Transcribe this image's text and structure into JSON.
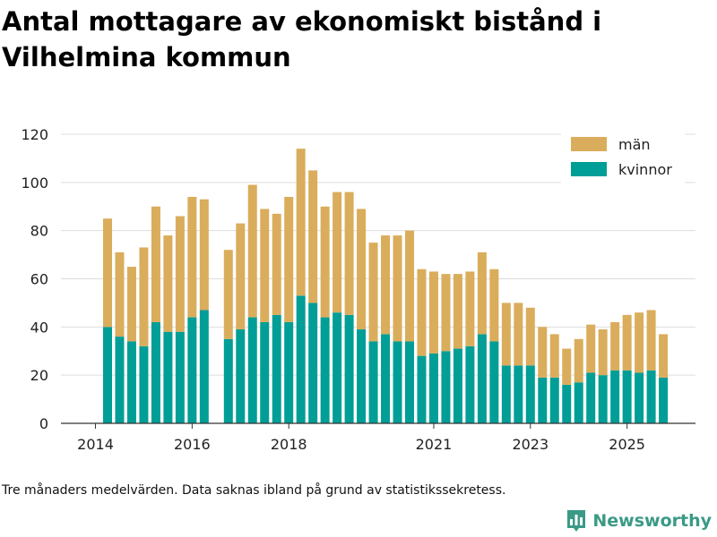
{
  "title": "Antal mottagare av ekonomiskt bistånd i Vilhelmina kommun",
  "footnote": "Tre månaders medelvärden. Data saknas ibland på grund av statistikssekretess.",
  "brand": {
    "name": "Newsworthy",
    "color": "#3a9a86",
    "icon": "bar-chart-logo-icon"
  },
  "colors": {
    "kvinnor": "#009e96",
    "man": "#daad5c",
    "grid": "#dddddd",
    "axis": "#333333"
  },
  "chart_data": {
    "type": "bar",
    "stacked": true,
    "title": "Antal mottagare av ekonomiskt bistånd i Vilhelmina kommun",
    "xlabel": "",
    "ylabel": "",
    "ylim": [
      0,
      120
    ],
    "yticks": [
      0,
      20,
      40,
      60,
      80,
      100,
      120
    ],
    "xticks": [
      "2014",
      "2016",
      "2018",
      "2021",
      "2023",
      "2025"
    ],
    "legend_position": "top-right",
    "categories": [
      "2014-Q2",
      "2014-Q3",
      "2014-Q4",
      "2015-Q1",
      "2015-Q2",
      "2015-Q3",
      "2015-Q4",
      "2016-Q1",
      "2016-Q2",
      "2016-Q3",
      "2016-Q4",
      "2017-Q1",
      "2017-Q2",
      "2017-Q3",
      "2017-Q4",
      "2018-Q1",
      "2018-Q2",
      "2018-Q3",
      "2018-Q4",
      "2019-Q1",
      "2019-Q2",
      "2019-Q3",
      "2019-Q4",
      "2020-Q1",
      "2020-Q2",
      "2020-Q3",
      "2020-Q4",
      "2021-Q1",
      "2021-Q2",
      "2021-Q3",
      "2021-Q4",
      "2022-Q1",
      "2022-Q2",
      "2022-Q3",
      "2022-Q4",
      "2023-Q1",
      "2023-Q2",
      "2023-Q3",
      "2023-Q4",
      "2024-Q1",
      "2024-Q2",
      "2024-Q3",
      "2024-Q4",
      "2025-Q1",
      "2025-Q2",
      "2025-Q3",
      "2025-Q4",
      "2026-Q1",
      "2026-Q2",
      "2026-Q3"
    ],
    "series": [
      {
        "name": "kvinnor",
        "label": "kvinnor",
        "values": [
          40,
          36,
          34,
          32,
          42,
          38,
          38,
          44,
          47,
          null,
          35,
          39,
          44,
          42,
          45,
          42,
          53,
          50,
          44,
          46,
          45,
          39,
          34,
          37,
          34,
          34,
          28,
          29,
          30,
          31,
          32,
          37,
          34,
          24,
          24,
          24,
          19,
          19,
          16,
          17,
          21,
          20,
          22,
          22,
          21,
          22,
          19,
          null,
          null,
          null
        ]
      },
      {
        "name": "män",
        "label": "män",
        "values": [
          45,
          35,
          31,
          41,
          48,
          40,
          48,
          50,
          46,
          null,
          37,
          44,
          55,
          47,
          42,
          52,
          61,
          55,
          46,
          50,
          51,
          50,
          41,
          41,
          44,
          46,
          36,
          34,
          32,
          31,
          31,
          34,
          30,
          26,
          26,
          24,
          21,
          18,
          15,
          18,
          20,
          19,
          20,
          23,
          25,
          25,
          18,
          null,
          null,
          null
        ]
      }
    ]
  }
}
